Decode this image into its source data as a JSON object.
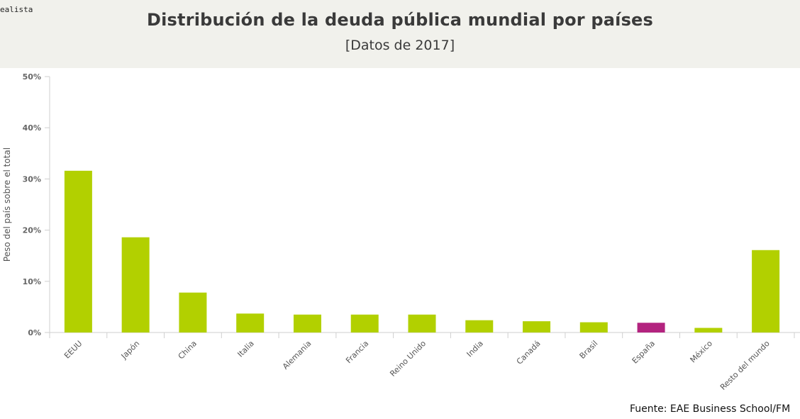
{
  "header": {
    "brand": "ealista",
    "title": "Distribución de la deuda pública mundial por países",
    "subtitle": "[Datos de 2017]"
  },
  "footer": {
    "source": "Fuente: EAE Business School/FM"
  },
  "colors": {
    "bar": "#b2d000",
    "highlight": "#b3237f",
    "axis": "#cfcfcf",
    "text": "#555555"
  },
  "chart_data": {
    "type": "bar",
    "ylabel": "Peso del país sobre el total",
    "ylim": [
      0,
      50
    ],
    "yticks": [
      "0%",
      "10%",
      "20%",
      "30%",
      "40%",
      "50%"
    ],
    "ytick_values": [
      0,
      10,
      20,
      30,
      40,
      50
    ],
    "categories": [
      "EEUU",
      "Japón",
      "China",
      "Italia",
      "Alemania",
      "Francia",
      "Reino Unido",
      "India",
      "Canadá",
      "Brasil",
      "España",
      "México",
      "Resto del mundo"
    ],
    "values": [
      31.6,
      18.6,
      7.8,
      3.7,
      3.5,
      3.5,
      3.5,
      2.4,
      2.2,
      2.0,
      1.9,
      0.9,
      16.1
    ],
    "highlight": "España",
    "grid": false
  }
}
